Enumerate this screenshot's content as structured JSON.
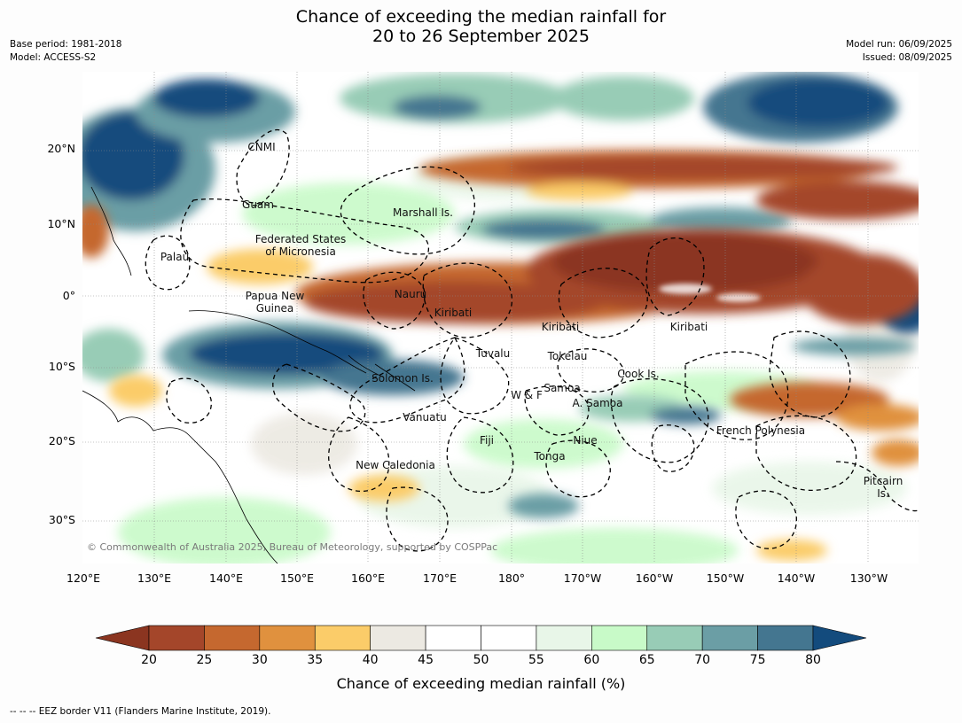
{
  "title": {
    "line1": "Chance of exceeding the median rainfall for",
    "line2": "20 to 26 September 2025"
  },
  "meta": {
    "base_period": "Base period: 1981-2018",
    "model": "Model: ACCESS-S2",
    "model_run": "Model run: 06/09/2025",
    "issued": "Issued: 08/09/2025"
  },
  "axes": {
    "lat_labels": [
      "20°N",
      "10°N",
      "0°",
      "10°S",
      "20°S",
      "30°S"
    ],
    "lon_labels": [
      "120°E",
      "130°E",
      "140°E",
      "150°E",
      "160°E",
      "170°E",
      "180°",
      "170°W",
      "160°W",
      "150°W",
      "140°W",
      "130°W"
    ]
  },
  "places": [
    {
      "name": "CNMI"
    },
    {
      "name": "Guam"
    },
    {
      "name": "Marshall Is."
    },
    {
      "name": "Federated States\nof Micronesia"
    },
    {
      "name": "Palau"
    },
    {
      "name": "Papua New\nGuinea"
    },
    {
      "name": "Nauru"
    },
    {
      "name": "Kiribati"
    },
    {
      "name": "Kiribati"
    },
    {
      "name": "Kiribati"
    },
    {
      "name": "Tuvalu"
    },
    {
      "name": "Tokelau"
    },
    {
      "name": "Solomon Is."
    },
    {
      "name": "Samoa"
    },
    {
      "name": "W & F"
    },
    {
      "name": "A. Samoa"
    },
    {
      "name": "Cook Is."
    },
    {
      "name": "Vanuatu"
    },
    {
      "name": "Fiji"
    },
    {
      "name": "Niue"
    },
    {
      "name": "French Polynesia"
    },
    {
      "name": "Tonga"
    },
    {
      "name": "New Caledonia"
    },
    {
      "name": "Pitcairn\nIs."
    }
  ],
  "credit": "© Commonwealth of Australia 2025, Bureau of Meteorology, supported by COSPPac",
  "colorbar": {
    "ticks": [
      "20",
      "25",
      "30",
      "35",
      "40",
      "45",
      "50",
      "55",
      "60",
      "65",
      "70",
      "75",
      "80"
    ],
    "colors": [
      "#a4462a",
      "#c5682f",
      "#e0913e",
      "#fbcc69",
      "#ece9e2",
      "#ffffff",
      "#ffffff",
      "#e8f6e8",
      "#c8fac8",
      "#98ccb6",
      "#6b9ea5",
      "#447690"
    ],
    "under_color": "#8b3520",
    "over_color": "#134b7d",
    "label": "Chance of exceeding median rainfall (%)"
  },
  "footer": "--  --  -- EEZ border V11 (Flanders Marine Institute, 2019)."
}
